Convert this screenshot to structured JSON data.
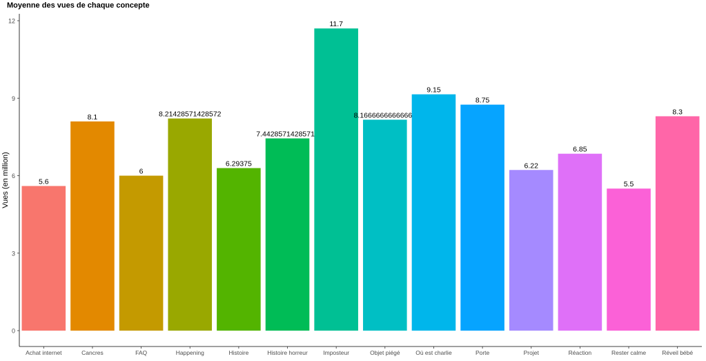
{
  "chart_data": {
    "type": "bar",
    "title": "Moyenne des vues de chaque concepte",
    "xlabel": "",
    "ylabel": "Vues (en million)",
    "ylim": [
      0,
      12.3
    ],
    "yticks": [
      0,
      3,
      6,
      9,
      12
    ],
    "grid": false,
    "legend": "none",
    "categories": [
      "Achat internet",
      "Cancres",
      "FAQ",
      "Happening",
      "Histoire",
      "Histoire horreur",
      "Imposteur",
      "Objet piégé",
      "Où est charlie",
      "Porte",
      "Projet",
      "Réaction",
      "Rester calme",
      "Réveil bébé"
    ],
    "values": [
      5.6,
      8.1,
      6,
      8.21428571428572,
      6.29375,
      7.44285714285714,
      11.7,
      8.16666666666667,
      9.15,
      8.75,
      6.22,
      6.85,
      5.5,
      8.3
    ],
    "value_labels": [
      "5.6",
      "8.1",
      "6",
      "8.21428571428572",
      "6.29375",
      "7.44285714285714",
      "11.7",
      "8.16666666666667",
      "9.15",
      "8.75",
      "6.22",
      "6.85",
      "5.5",
      "8.3"
    ],
    "colors": [
      "#F8766D",
      "#E38900",
      "#C49A00",
      "#99A800",
      "#53B400",
      "#00BC56",
      "#00C094",
      "#00BFC4",
      "#00B6EB",
      "#06A4FF",
      "#A58AFF",
      "#DF70F8",
      "#FB61D7",
      "#FF66A8"
    ]
  }
}
